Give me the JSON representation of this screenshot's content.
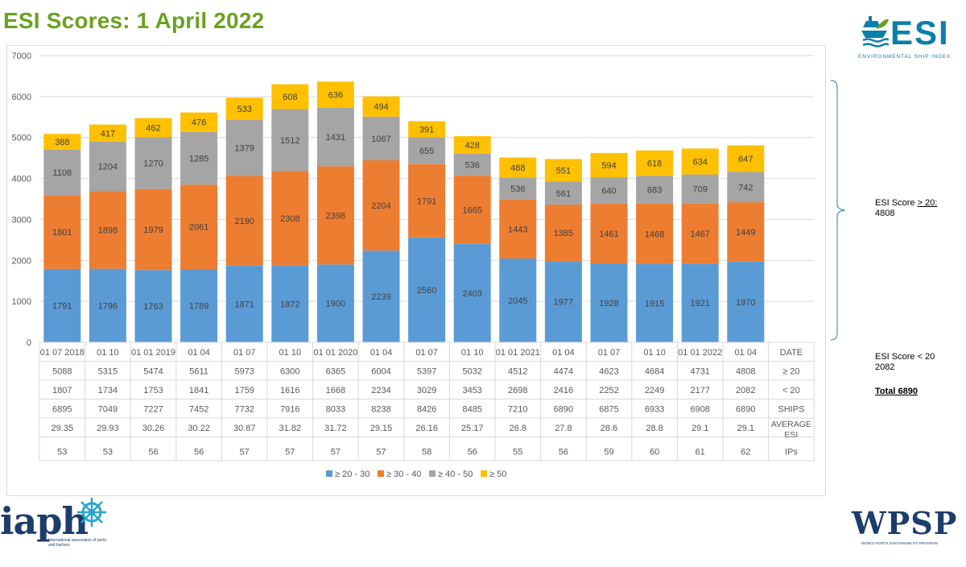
{
  "title": "ESI Scores: 1 April 2022",
  "esi_logo": {
    "word": "ESI",
    "subtitle": "ENVIRONMENTAL SHIP INDEX",
    "icon": "ship-leaf-icon"
  },
  "iaph_logo": {
    "word": "iaph",
    "subtitle": "International association of ports and harbors",
    "icon": "ship-wheel-icon"
  },
  "wpsp_logo": {
    "word": "WPSP",
    "subtitle": "WORLD PORTS SUSTAINABILITY PROGRAM"
  },
  "side_notes": {
    "ge20_label": "ESI Score ",
    "ge20_symbol": "> 20:",
    "ge20_value": "4808",
    "lt20_label": "ESI Score < 20",
    "lt20_value": "2082",
    "total": "Total 6890"
  },
  "colors": {
    "s1": "#5b9bd5",
    "s2": "#ed7d31",
    "s3": "#a5a5a5",
    "s4": "#ffc000",
    "title": "#6aa121"
  },
  "chart_data": {
    "type": "bar",
    "stacked": true,
    "ylim": [
      0,
      7000
    ],
    "yticks": [
      0,
      1000,
      2000,
      3000,
      4000,
      5000,
      6000,
      7000
    ],
    "grid": true,
    "legend_position": "bottom",
    "categories": [
      "01 07 2018",
      "01 10",
      "01 01 2019",
      "01 04",
      "01 07",
      "01 10",
      "01 01 2020",
      "01 04",
      "01 07",
      "01 10",
      "01 01 2021",
      "01 04",
      "01 07",
      "01 10",
      "01 01 2022",
      "01 04"
    ],
    "series": [
      {
        "name": "≥ 20 - 30",
        "values": [
          1791,
          1796,
          1763,
          1789,
          1871,
          1872,
          1900,
          2239,
          2560,
          2403,
          2045,
          1977,
          1928,
          1915,
          1921,
          1970
        ]
      },
      {
        "name": "≥ 30 - 40",
        "values": [
          1801,
          1898,
          1979,
          2061,
          2190,
          2308,
          2398,
          2204,
          1791,
          1665,
          1443,
          1385,
          1461,
          1468,
          1467,
          1449
        ]
      },
      {
        "name": "≥ 40 - 50",
        "values": [
          1108,
          1204,
          1270,
          1285,
          1379,
          1512,
          1431,
          1067,
          655,
          536,
          536,
          561,
          640,
          683,
          709,
          742
        ]
      },
      {
        "name": "≥ 50",
        "values": [
          388,
          417,
          462,
          476,
          533,
          608,
          636,
          494,
          391,
          428,
          488,
          551,
          594,
          618,
          634,
          647
        ]
      }
    ],
    "table_header": "DATE",
    "table_rows": [
      {
        "label": "≥ 20",
        "values": [
          "5088",
          "5315",
          "5474",
          "5611",
          "5973",
          "6300",
          "6365",
          "6004",
          "5397",
          "5032",
          "4512",
          "4474",
          "4623",
          "4684",
          "4731",
          "4808"
        ]
      },
      {
        "label": "< 20",
        "values": [
          "1807",
          "1734",
          "1753",
          "1841",
          "1759",
          "1616",
          "1668",
          "2234",
          "3029",
          "3453",
          "2698",
          "2416",
          "2252",
          "2249",
          "2177",
          "2082"
        ]
      },
      {
        "label": "SHIPS",
        "values": [
          "6895",
          "7049",
          "7227",
          "7452",
          "7732",
          "7916",
          "8033",
          "8238",
          "8426",
          "8485",
          "7210",
          "6890",
          "6875",
          "6933",
          "6908",
          "6890"
        ]
      },
      {
        "label": "AVERAGE ESI",
        "values": [
          "29.35",
          "29.93",
          "30.26",
          "30.22",
          "30.87",
          "31.82",
          "31.72",
          "29.15",
          "26.16",
          "25.17",
          "26.8",
          "27.8",
          "28.6",
          "28.8",
          "29.1",
          "29.1"
        ]
      },
      {
        "label": "IPs",
        "values": [
          "53",
          "53",
          "56",
          "56",
          "57",
          "57",
          "57",
          "57",
          "58",
          "56",
          "55",
          "56",
          "59",
          "60",
          "61",
          "62"
        ]
      }
    ]
  }
}
